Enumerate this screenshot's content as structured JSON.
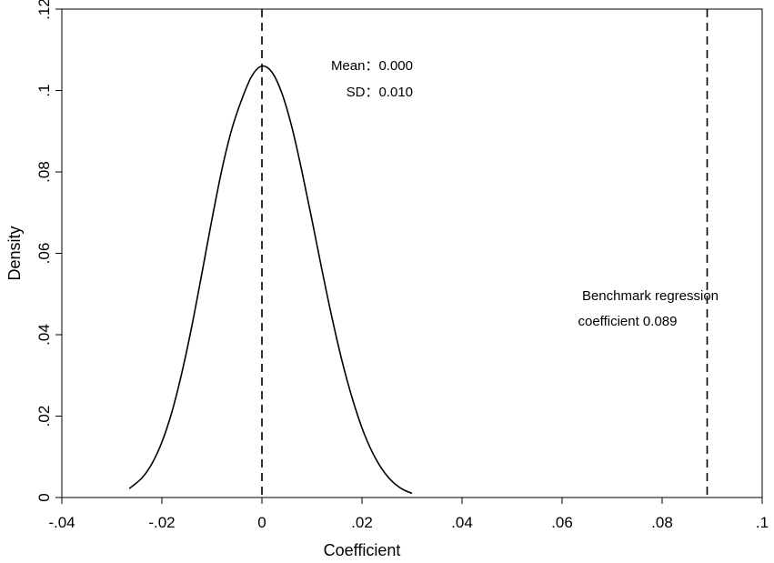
{
  "chart_data": {
    "type": "line",
    "xlabel": "Coefficient",
    "ylabel": "Density",
    "xlim": [
      -0.04,
      0.1
    ],
    "ylim": [
      0,
      0.12
    ],
    "x_ticks": [
      -0.04,
      -0.02,
      0,
      0.02,
      0.04,
      0.06,
      0.08,
      0.1
    ],
    "x_tick_labels": [
      "-.04",
      "-.02",
      "0",
      ".02",
      ".04",
      ".06",
      ".08",
      ".1"
    ],
    "y_ticks": [
      0,
      0.02,
      0.04,
      0.06,
      0.08,
      0.1,
      0.12
    ],
    "y_tick_labels": [
      "0",
      ".02",
      ".04",
      ".06",
      ".08",
      ".1",
      ".12"
    ],
    "grid": false,
    "series": [
      {
        "x": [
          -0.0265,
          -0.024,
          -0.022,
          -0.02,
          -0.018,
          -0.016,
          -0.014,
          -0.012,
          -0.01,
          -0.008,
          -0.006,
          -0.004,
          -0.002,
          0,
          0.002,
          0.004,
          0.006,
          0.008,
          0.01,
          0.012,
          0.014,
          0.016,
          0.018,
          0.02,
          0.022,
          0.024,
          0.026,
          0.028,
          0.03
        ],
        "y": [
          0.0022,
          0.0048,
          0.0083,
          0.0136,
          0.021,
          0.0307,
          0.0422,
          0.0551,
          0.0683,
          0.0806,
          0.0906,
          0.0979,
          0.1036,
          0.106,
          0.1045,
          0.0993,
          0.0909,
          0.0801,
          0.0682,
          0.0559,
          0.0442,
          0.0336,
          0.0246,
          0.0171,
          0.0113,
          0.007,
          0.004,
          0.0021,
          0.001
        ]
      }
    ],
    "reference_lines": [
      {
        "orientation": "vertical",
        "x": 0,
        "style": "dashed"
      },
      {
        "orientation": "vertical",
        "x": 0.089,
        "style": "dashed"
      }
    ],
    "annotations": {
      "mean": "Mean：0.000",
      "sd": "SD：0.010",
      "benchmark_line1": "Benchmark regression",
      "benchmark_line2": "coefficient 0.089"
    }
  }
}
